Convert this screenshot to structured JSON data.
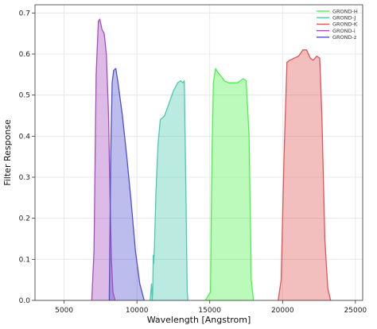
{
  "chart_data": {
    "type": "area",
    "xlabel": "Wavelength [Angstrom]",
    "ylabel": "Filter Response",
    "xlim": [
      3000,
      25500
    ],
    "ylim": [
      0,
      0.72
    ],
    "xticks": [
      5000,
      10000,
      15000,
      20000,
      25000
    ],
    "yticks": [
      0.0,
      0.1,
      0.2,
      0.3,
      0.4,
      0.5,
      0.6,
      0.7
    ],
    "grid": true,
    "legend_position": "top-right",
    "series": [
      {
        "name": "GROND-H",
        "color": "#4cf24c",
        "points": [
          [
            14700,
            0
          ],
          [
            15050,
            0.02
          ],
          [
            15150,
            0.35
          ],
          [
            15250,
            0.53
          ],
          [
            15400,
            0.565
          ],
          [
            15550,
            0.555
          ],
          [
            15800,
            0.545
          ],
          [
            16000,
            0.535
          ],
          [
            16300,
            0.53
          ],
          [
            16600,
            0.53
          ],
          [
            16900,
            0.53
          ],
          [
            17100,
            0.535
          ],
          [
            17300,
            0.54
          ],
          [
            17500,
            0.535
          ],
          [
            17700,
            0.4
          ],
          [
            17850,
            0.05
          ],
          [
            18000,
            0.0
          ]
        ]
      },
      {
        "name": "GROND-J",
        "color": "#4cc9b0",
        "points": [
          [
            10900,
            0
          ],
          [
            11000,
            0.04
          ],
          [
            11050,
            0.0
          ],
          [
            11080,
            0.02
          ],
          [
            11120,
            0.11
          ],
          [
            11150,
            0.09
          ],
          [
            11200,
            0.13
          ],
          [
            11300,
            0.26
          ],
          [
            11450,
            0.38
          ],
          [
            11600,
            0.44
          ],
          [
            11900,
            0.45
          ],
          [
            12200,
            0.48
          ],
          [
            12500,
            0.51
          ],
          [
            12800,
            0.53
          ],
          [
            13000,
            0.535
          ],
          [
            13150,
            0.53
          ],
          [
            13250,
            0.535
          ],
          [
            13350,
            0.3
          ],
          [
            13450,
            0.02
          ],
          [
            13500,
            0.0
          ]
        ]
      },
      {
        "name": "GROND-K",
        "color": "#e05555",
        "points": [
          [
            19700,
            0
          ],
          [
            19900,
            0.05
          ],
          [
            20100,
            0.35
          ],
          [
            20300,
            0.58
          ],
          [
            20500,
            0.585
          ],
          [
            20800,
            0.59
          ],
          [
            21100,
            0.595
          ],
          [
            21400,
            0.61
          ],
          [
            21650,
            0.61
          ],
          [
            21900,
            0.59
          ],
          [
            22100,
            0.585
          ],
          [
            22350,
            0.595
          ],
          [
            22550,
            0.59
          ],
          [
            22700,
            0.45
          ],
          [
            22900,
            0.15
          ],
          [
            23100,
            0.03
          ],
          [
            23300,
            0.0
          ]
        ]
      },
      {
        "name": "GROND-i",
        "color": "#a64cc0",
        "points": [
          [
            6900,
            0
          ],
          [
            7050,
            0.12
          ],
          [
            7200,
            0.55
          ],
          [
            7350,
            0.68
          ],
          [
            7450,
            0.685
          ],
          [
            7600,
            0.66
          ],
          [
            7750,
            0.65
          ],
          [
            7900,
            0.6
          ],
          [
            8050,
            0.45
          ],
          [
            8150,
            0.25
          ],
          [
            8250,
            0.1
          ],
          [
            8350,
            0.02
          ],
          [
            8500,
            0.0
          ]
        ]
      },
      {
        "name": "GROND-z",
        "color": "#5050d0",
        "points": [
          [
            8100,
            0
          ],
          [
            8200,
            0.35
          ],
          [
            8300,
            0.53
          ],
          [
            8400,
            0.56
          ],
          [
            8550,
            0.565
          ],
          [
            8700,
            0.53
          ],
          [
            9000,
            0.45
          ],
          [
            9300,
            0.35
          ],
          [
            9600,
            0.24
          ],
          [
            9900,
            0.12
          ],
          [
            10200,
            0.04
          ],
          [
            10500,
            0.0
          ]
        ]
      }
    ]
  }
}
